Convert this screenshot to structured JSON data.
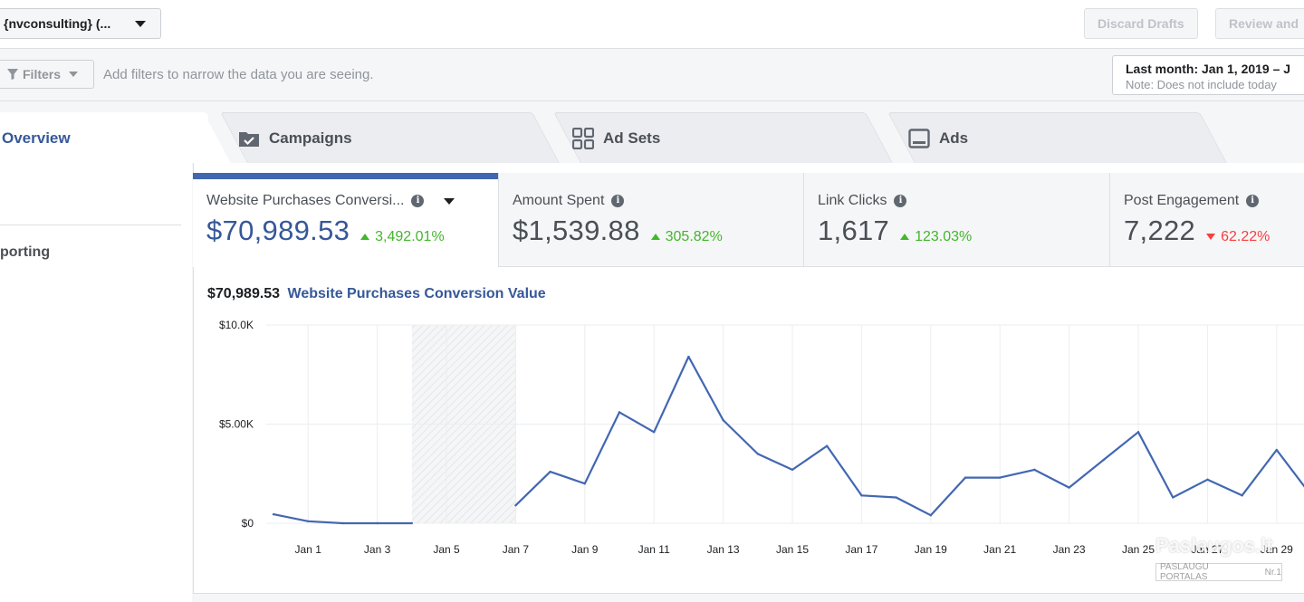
{
  "header": {
    "account_label": "{nvconsulting} (...",
    "discard_drafts_label": "Discard Drafts",
    "review_label": "Review and"
  },
  "filterbar": {
    "filters_label": "Filters",
    "hint": "Add filters to narrow the data you are seeing.",
    "date_range": "Last month: Jan 1, 2019 – J",
    "date_note": "Note: Does not include today"
  },
  "tabs": [
    {
      "label": "Overview",
      "icon": "none",
      "active": true
    },
    {
      "label": "Campaigns",
      "icon": "folder-check-icon"
    },
    {
      "label": "Ad Sets",
      "icon": "grid-icon"
    },
    {
      "label": "Ads",
      "icon": "ad-icon"
    }
  ],
  "sidebar": {
    "reporting_label": "porting"
  },
  "metrics": [
    {
      "label": "Website Purchases Conversi...",
      "value": "$70,989.53",
      "delta": "3,492.01%",
      "direction": "up"
    },
    {
      "label": "Amount Spent",
      "value": "$1,539.88",
      "delta": "305.82%",
      "direction": "up"
    },
    {
      "label": "Link Clicks",
      "value": "1,617",
      "delta": "123.03%",
      "direction": "up"
    },
    {
      "label": "Post Engagement",
      "value": "7,222",
      "delta": "62.22%",
      "direction": "down"
    }
  ],
  "chart_heading": {
    "amount": "$70,989.53",
    "name": "Website Purchases Conversion Value"
  },
  "colors": {
    "accent": "#4267b2",
    "line": "#4267b2",
    "up": "#42b72a",
    "down": "#fa3e3e"
  },
  "watermark": {
    "text": "Paslaugos.lt",
    "sub": "PASLAUGU PORTALAS",
    "badge": "Nr.1"
  },
  "chart_data": {
    "type": "line",
    "x_tick_labels": [
      "Jan 1",
      "Jan 3",
      "Jan 5",
      "Jan 7",
      "Jan 9",
      "Jan 11",
      "Jan 13",
      "Jan 15",
      "Jan 17",
      "Jan 19",
      "Jan 21",
      "Jan 23",
      "Jan 25",
      "Jan 27",
      "Jan 29"
    ],
    "y_tick_labels": [
      "$0",
      "$5.00K",
      "$10.0K"
    ],
    "ylim": [
      0,
      10000
    ],
    "x_range": [
      0,
      30
    ],
    "grid": true,
    "shaded_range": [
      4,
      7
    ],
    "series": [
      {
        "points": [
          {
            "x": 0,
            "y": 450
          },
          {
            "x": 1,
            "y": 100
          },
          {
            "x": 2,
            "y": 0
          },
          {
            "x": 3,
            "y": 0
          },
          {
            "x": 4,
            "y": 0
          }
        ]
      },
      {
        "points": [
          {
            "x": 7,
            "y": 900
          },
          {
            "x": 8,
            "y": 2600
          },
          {
            "x": 9,
            "y": 2000
          },
          {
            "x": 10,
            "y": 5600
          },
          {
            "x": 11,
            "y": 4600
          },
          {
            "x": 12,
            "y": 8400
          },
          {
            "x": 13,
            "y": 5200
          },
          {
            "x": 14,
            "y": 3500
          },
          {
            "x": 15,
            "y": 2700
          },
          {
            "x": 16,
            "y": 3900
          },
          {
            "x": 17,
            "y": 1400
          },
          {
            "x": 18,
            "y": 1300
          },
          {
            "x": 19,
            "y": 400
          },
          {
            "x": 20,
            "y": 2300
          },
          {
            "x": 21,
            "y": 2300
          },
          {
            "x": 22,
            "y": 2700
          },
          {
            "x": 23,
            "y": 1800
          },
          {
            "x": 24,
            "y": 3200
          },
          {
            "x": 25,
            "y": 4600
          },
          {
            "x": 26,
            "y": 1300
          },
          {
            "x": 27,
            "y": 2200
          },
          {
            "x": 28,
            "y": 1400
          },
          {
            "x": 29,
            "y": 3700
          },
          {
            "x": 30,
            "y": 1400
          }
        ]
      }
    ]
  }
}
